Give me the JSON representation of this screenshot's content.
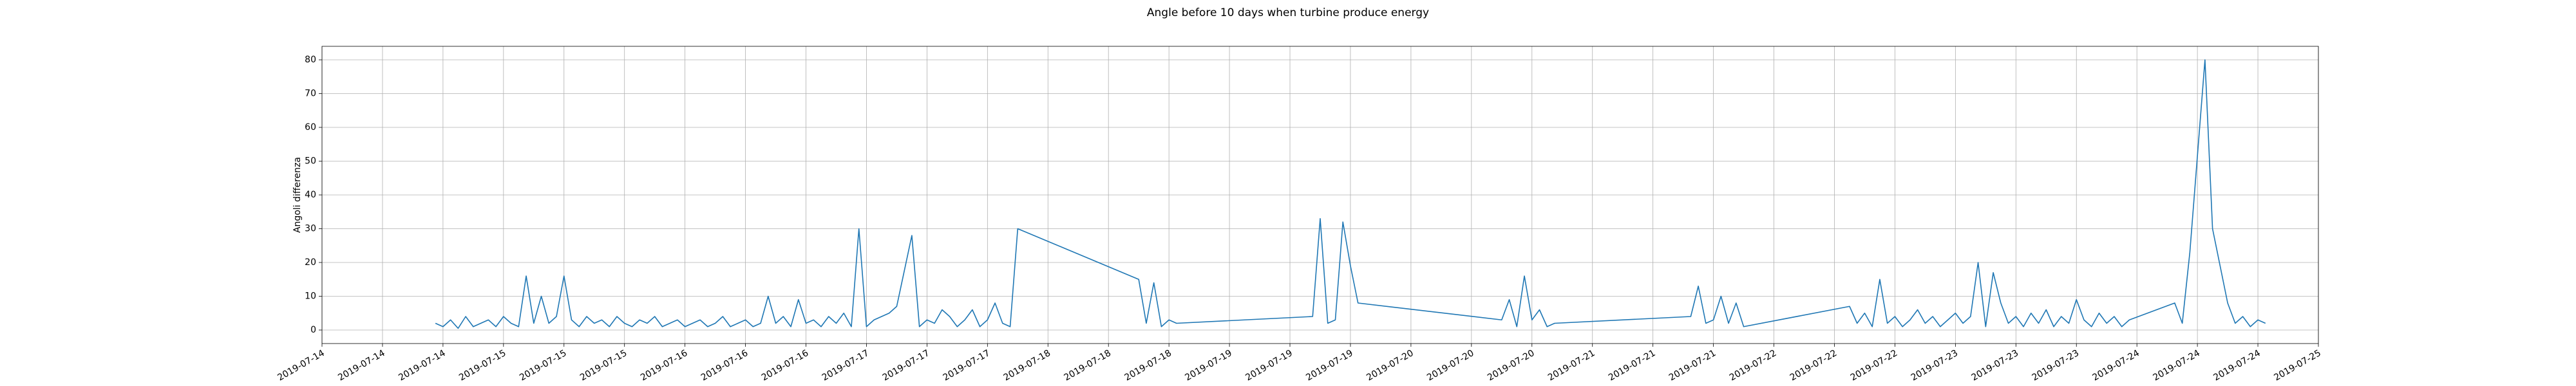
{
  "chart_data": {
    "type": "line",
    "title": "Angle before 10 days when turbine produce energy",
    "y_label": "Angoli differenza",
    "color": "#1f77b4",
    "grid": true,
    "x": [
      "2019-07-14T15:00",
      "2019-07-14T16:00",
      "2019-07-14T17:00",
      "2019-07-14T18:00",
      "2019-07-14T19:00",
      "2019-07-14T20:00",
      "2019-07-14T21:00",
      "2019-07-14T22:00",
      "2019-07-14T23:00",
      "2019-07-15T00:00",
      "2019-07-15T01:00",
      "2019-07-15T02:00",
      "2019-07-15T03:00",
      "2019-07-15T04:00",
      "2019-07-15T05:00",
      "2019-07-15T06:00",
      "2019-07-15T07:00",
      "2019-07-15T08:00",
      "2019-07-15T09:00",
      "2019-07-15T10:00",
      "2019-07-15T11:00",
      "2019-07-15T12:00",
      "2019-07-15T13:00",
      "2019-07-15T14:00",
      "2019-07-15T15:00",
      "2019-07-15T16:00",
      "2019-07-15T17:00",
      "2019-07-15T18:00",
      "2019-07-15T19:00",
      "2019-07-15T20:00",
      "2019-07-15T21:00",
      "2019-07-15T22:00",
      "2019-07-15T23:00",
      "2019-07-16T00:00",
      "2019-07-16T01:00",
      "2019-07-16T02:00",
      "2019-07-16T03:00",
      "2019-07-16T04:00",
      "2019-07-16T05:00",
      "2019-07-16T06:00",
      "2019-07-16T07:00",
      "2019-07-16T08:00",
      "2019-07-16T09:00",
      "2019-07-16T10:00",
      "2019-07-16T11:00",
      "2019-07-16T12:00",
      "2019-07-16T13:00",
      "2019-07-16T14:00",
      "2019-07-16T15:00",
      "2019-07-16T16:00",
      "2019-07-16T17:00",
      "2019-07-16T18:00",
      "2019-07-16T19:00",
      "2019-07-16T20:00",
      "2019-07-16T21:00",
      "2019-07-16T22:00",
      "2019-07-16T23:00",
      "2019-07-17T00:00",
      "2019-07-17T01:00",
      "2019-07-17T03:00",
      "2019-07-17T04:00",
      "2019-07-17T06:00",
      "2019-07-17T07:00",
      "2019-07-17T08:00",
      "2019-07-17T09:00",
      "2019-07-17T10:00",
      "2019-07-17T11:00",
      "2019-07-17T12:00",
      "2019-07-17T13:00",
      "2019-07-17T14:00",
      "2019-07-17T15:00",
      "2019-07-17T16:00",
      "2019-07-17T17:00",
      "2019-07-17T18:00",
      "2019-07-17T19:00",
      "2019-07-17T20:00",
      "2019-07-18T12:00",
      "2019-07-18T13:00",
      "2019-07-18T14:00",
      "2019-07-18T15:00",
      "2019-07-18T16:00",
      "2019-07-18T17:00",
      "2019-07-19T11:00",
      "2019-07-19T12:00",
      "2019-07-19T13:00",
      "2019-07-19T14:00",
      "2019-07-19T15:00",
      "2019-07-19T16:00",
      "2019-07-19T17:00",
      "2019-07-20T12:00",
      "2019-07-20T13:00",
      "2019-07-20T14:00",
      "2019-07-20T15:00",
      "2019-07-20T16:00",
      "2019-07-20T17:00",
      "2019-07-20T18:00",
      "2019-07-20T19:00",
      "2019-07-21T13:00",
      "2019-07-21T14:00",
      "2019-07-21T15:00",
      "2019-07-21T16:00",
      "2019-07-21T17:00",
      "2019-07-21T18:00",
      "2019-07-21T19:00",
      "2019-07-21T20:00",
      "2019-07-22T10:00",
      "2019-07-22T11:00",
      "2019-07-22T12:00",
      "2019-07-22T13:00",
      "2019-07-22T14:00",
      "2019-07-22T15:00",
      "2019-07-22T16:00",
      "2019-07-22T17:00",
      "2019-07-22T18:00",
      "2019-07-22T19:00",
      "2019-07-22T20:00",
      "2019-07-22T21:00",
      "2019-07-22T22:00",
      "2019-07-22T23:00",
      "2019-07-23T00:00",
      "2019-07-23T01:00",
      "2019-07-23T02:00",
      "2019-07-23T03:00",
      "2019-07-23T04:00",
      "2019-07-23T05:00",
      "2019-07-23T06:00",
      "2019-07-23T07:00",
      "2019-07-23T08:00",
      "2019-07-23T09:00",
      "2019-07-23T10:00",
      "2019-07-23T11:00",
      "2019-07-23T12:00",
      "2019-07-23T13:00",
      "2019-07-23T14:00",
      "2019-07-23T15:00",
      "2019-07-23T16:00",
      "2019-07-23T17:00",
      "2019-07-23T18:00",
      "2019-07-23T19:00",
      "2019-07-23T20:00",
      "2019-07-23T21:00",
      "2019-07-23T22:00",
      "2019-07-23T23:00",
      "2019-07-24T05:00",
      "2019-07-24T06:00",
      "2019-07-24T07:00",
      "2019-07-24T09:00",
      "2019-07-24T10:00",
      "2019-07-24T12:00",
      "2019-07-24T13:00",
      "2019-07-24T14:00",
      "2019-07-24T15:00",
      "2019-07-24T16:00",
      "2019-07-24T17:00"
    ],
    "values": [
      2,
      1,
      3,
      0.5,
      4,
      1,
      2,
      3,
      1,
      4,
      2,
      1,
      16,
      2,
      10,
      2,
      4,
      16,
      3,
      1,
      4,
      2,
      3,
      1,
      4,
      2,
      1,
      3,
      2,
      4,
      1,
      2,
      3,
      1,
      2,
      3,
      1,
      2,
      4,
      1,
      2,
      3,
      1,
      2,
      10,
      2,
      4,
      1,
      9,
      2,
      3,
      1,
      4,
      2,
      5,
      1,
      30,
      1,
      3,
      5,
      7,
      28,
      1,
      3,
      2,
      6,
      4,
      1,
      3,
      6,
      1,
      3,
      8,
      2,
      1,
      30,
      15,
      2,
      14,
      1,
      3,
      2,
      4,
      33,
      2,
      3,
      32,
      19,
      8,
      3,
      9,
      1,
      16,
      3,
      6,
      1,
      2,
      4,
      13,
      2,
      3,
      10,
      2,
      8,
      1,
      7,
      2,
      5,
      1,
      15,
      2,
      4,
      1,
      3,
      6,
      2,
      4,
      1,
      3,
      5,
      2,
      4,
      20,
      1,
      17,
      8,
      2,
      4,
      1,
      5,
      2,
      6,
      1,
      4,
      2,
      9,
      3,
      1,
      5,
      2,
      4,
      1,
      3,
      8,
      2,
      23,
      80,
      30,
      8,
      2,
      4,
      1,
      3,
      2
    ],
    "xlim": [
      "2019-07-14T00:00",
      "2019-07-25T00:00"
    ],
    "xticks": [
      {
        "value": "2019-07-14T00:00",
        "label": "2019-07-14"
      },
      {
        "value": "2019-07-14T08:00",
        "label": "2019-07-14"
      },
      {
        "value": "2019-07-14T16:00",
        "label": "2019-07-14"
      },
      {
        "value": "2019-07-15T00:00",
        "label": "2019-07-15"
      },
      {
        "value": "2019-07-15T08:00",
        "label": "2019-07-15"
      },
      {
        "value": "2019-07-15T16:00",
        "label": "2019-07-15"
      },
      {
        "value": "2019-07-16T00:00",
        "label": "2019-07-16"
      },
      {
        "value": "2019-07-16T08:00",
        "label": "2019-07-16"
      },
      {
        "value": "2019-07-16T16:00",
        "label": "2019-07-16"
      },
      {
        "value": "2019-07-17T00:00",
        "label": "2019-07-17"
      },
      {
        "value": "2019-07-17T08:00",
        "label": "2019-07-17"
      },
      {
        "value": "2019-07-17T16:00",
        "label": "2019-07-17"
      },
      {
        "value": "2019-07-18T00:00",
        "label": "2019-07-18"
      },
      {
        "value": "2019-07-18T08:00",
        "label": "2019-07-18"
      },
      {
        "value": "2019-07-18T16:00",
        "label": "2019-07-18"
      },
      {
        "value": "2019-07-19T00:00",
        "label": "2019-07-19"
      },
      {
        "value": "2019-07-19T08:00",
        "label": "2019-07-19"
      },
      {
        "value": "2019-07-19T16:00",
        "label": "2019-07-19"
      },
      {
        "value": "2019-07-20T00:00",
        "label": "2019-07-20"
      },
      {
        "value": "2019-07-20T08:00",
        "label": "2019-07-20"
      },
      {
        "value": "2019-07-20T16:00",
        "label": "2019-07-20"
      },
      {
        "value": "2019-07-21T00:00",
        "label": "2019-07-21"
      },
      {
        "value": "2019-07-21T08:00",
        "label": "2019-07-21"
      },
      {
        "value": "2019-07-21T16:00",
        "label": "2019-07-21"
      },
      {
        "value": "2019-07-22T00:00",
        "label": "2019-07-22"
      },
      {
        "value": "2019-07-22T08:00",
        "label": "2019-07-22"
      },
      {
        "value": "2019-07-22T16:00",
        "label": "2019-07-22"
      },
      {
        "value": "2019-07-23T00:00",
        "label": "2019-07-23"
      },
      {
        "value": "2019-07-23T08:00",
        "label": "2019-07-23"
      },
      {
        "value": "2019-07-23T16:00",
        "label": "2019-07-23"
      },
      {
        "value": "2019-07-24T00:00",
        "label": "2019-07-24"
      },
      {
        "value": "2019-07-24T08:00",
        "label": "2019-07-24"
      },
      {
        "value": "2019-07-24T16:00",
        "label": "2019-07-24"
      },
      {
        "value": "2019-07-25T00:00",
        "label": "2019-07-25"
      }
    ],
    "ylim": [
      -4,
      84
    ],
    "yticks": [
      0,
      10,
      20,
      30,
      40,
      50,
      60,
      70,
      80
    ]
  }
}
